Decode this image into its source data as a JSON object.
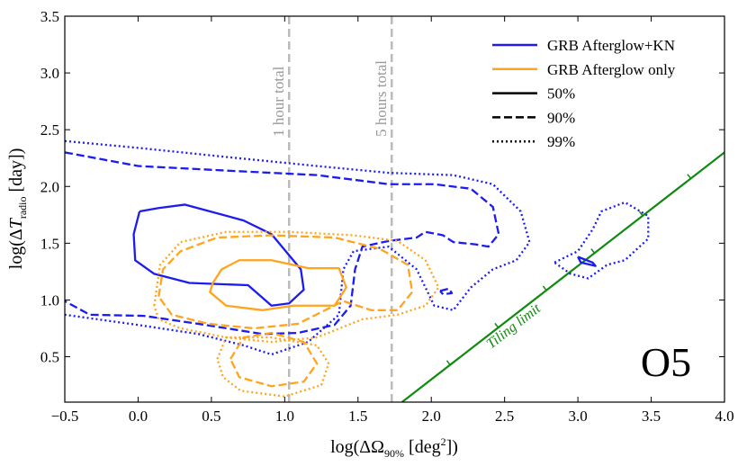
{
  "chart_data": {
    "type": "contour",
    "xlabel": [
      "log(ΔΩ",
      "90%",
      " [deg",
      "2",
      "])"
    ],
    "ylabel": [
      "log(Δ",
      "T",
      "radio",
      " [day])"
    ],
    "xlim": [
      -0.5,
      4.0
    ],
    "ylim": [
      0.1,
      3.5
    ],
    "xticks": [
      {
        "value": -0.5,
        "label": "−0.5"
      },
      {
        "value": 0,
        "label": "0.0"
      },
      0.5,
      {
        "value": 1,
        "label": "1.0"
      },
      1.5,
      {
        "value": 2,
        "label": "2.0"
      },
      2.5,
      {
        "value": 3,
        "label": "3.0"
      },
      3.5,
      {
        "value": 4,
        "label": "4.0"
      }
    ],
    "yticks": [
      0.5,
      {
        "value": 1,
        "label": "1.0"
      },
      1.5,
      {
        "value": 2,
        "label": "2.0"
      },
      2.5,
      {
        "value": 3,
        "label": "3.0"
      },
      3.5
    ],
    "legend": [
      {
        "label": "GRB Afterglow+KN",
        "color": "#1c1cf0"
      },
      {
        "label": "GRB Afterglow only",
        "color": "#ffa41c"
      },
      {
        "label": "50%",
        "linestyle": "solid"
      },
      {
        "label": "90%",
        "linestyle": "dashed"
      },
      {
        "label": "99%",
        "linestyle": "dotted"
      }
    ],
    "vlines": [
      {
        "x": 1.03,
        "label": "1 hour total",
        "color": "#bbbbbb"
      },
      {
        "x": 1.73,
        "label": "5 hours total",
        "color": "#bbbbbb"
      }
    ],
    "tiling": {
      "label": "Tiling limit",
      "color": "#108a10",
      "x": [
        1.8,
        4.0
      ],
      "y": [
        0.1,
        2.3
      ]
    },
    "annotation": "O5",
    "contours": [
      {
        "color": "#1c1cf0",
        "linestyle": "solid",
        "x": [
          0.01,
          -0.03,
          -0.02,
          0.11,
          0.35,
          0.75,
          0.91,
          1.03,
          1.13,
          1.11,
          0.91,
          0.72,
          0.32,
          0.14,
          0.01
        ],
        "y": [
          1.78,
          1.58,
          1.35,
          1.23,
          1.15,
          1.13,
          0.95,
          0.97,
          1.09,
          1.27,
          1.58,
          1.7,
          1.84,
          1.81,
          1.78
        ]
      },
      {
        "color": "#1c1cf0",
        "linestyle": "solid",
        "x": [
          3.0,
          3.1,
          3.12,
          3.02,
          3.0
        ],
        "y": [
          1.38,
          1.33,
          1.3,
          1.33,
          1.38
        ]
      },
      {
        "color": "#1c1cf0",
        "linestyle": "dashed",
        "x": [
          -0.5,
          0,
          0.6,
          1.22,
          1.71,
          2.02,
          2.27,
          2.42,
          2.46,
          2.39,
          2.3,
          2.15,
          2.08,
          1.96,
          1.9,
          1.71,
          1.53,
          1.48,
          1.45,
          1.34,
          1.09,
          0.85,
          0.41,
          0.04,
          -0.33,
          -0.5
        ],
        "y": [
          2.3,
          2.18,
          2.14,
          2.1,
          2.02,
          2.02,
          1.98,
          1.82,
          1.58,
          1.47,
          1.49,
          1.51,
          1.57,
          1.6,
          1.55,
          1.52,
          1.47,
          1.27,
          0.95,
          0.78,
          0.71,
          0.7,
          0.79,
          0.86,
          0.87,
          0.99
        ]
      },
      {
        "color": "#1c1cf0",
        "linestyle": "dashed",
        "x": [
          2.06,
          2.12,
          2.14,
          2.08,
          2.06
        ],
        "y": [
          1.08,
          1.1,
          1.06,
          1.05,
          1.08
        ]
      },
      {
        "color": "#1c1cf0",
        "linestyle": "dotted",
        "x": [
          -0.5,
          0,
          0.6,
          1.22,
          1.71,
          2.15,
          2.42,
          2.61,
          2.67,
          2.58,
          2.42,
          2.27,
          2.15,
          2.02,
          1.9,
          1.71,
          1.47,
          1.4,
          1.37,
          1.16,
          0.91,
          0.72,
          0.41,
          0,
          -0.5
        ],
        "y": [
          2.4,
          2.34,
          2.26,
          2.18,
          2.12,
          2.1,
          2.02,
          1.78,
          1.51,
          1.35,
          1.27,
          1.11,
          0.91,
          0.95,
          1.27,
          1.47,
          1.43,
          1.27,
          0.87,
          0.63,
          0.52,
          0.6,
          0.7,
          0.78,
          0.87
        ]
      },
      {
        "color": "#1c1cf0",
        "linestyle": "dotted",
        "x": [
          2.84,
          3.0,
          3.1,
          3.16,
          3.32,
          3.48,
          3.48,
          3.32,
          3.2,
          3.07,
          2.95,
          2.84
        ],
        "y": [
          1.33,
          1.43,
          1.62,
          1.78,
          1.86,
          1.74,
          1.54,
          1.35,
          1.31,
          1.19,
          1.23,
          1.33
        ]
      },
      {
        "color": "#ffa41c",
        "linestyle": "solid",
        "x": [
          0.51,
          0.57,
          0.69,
          0.91,
          1.16,
          1.37,
          1.42,
          1.34,
          1.06,
          0.85,
          0.6,
          0.49,
          0.51
        ],
        "y": [
          1.15,
          1.27,
          1.35,
          1.35,
          1.28,
          1.28,
          1.11,
          0.95,
          0.95,
          0.91,
          0.95,
          1.07,
          1.15
        ]
      },
      {
        "color": "#ffa41c",
        "linestyle": "dashed",
        "x": [
          0.14,
          0.17,
          0.29,
          0.54,
          0.91,
          1.34,
          1.65,
          1.84,
          1.87,
          1.77,
          1.59,
          1.4,
          1.09,
          0.79,
          0.48,
          0.23,
          0.14
        ],
        "y": [
          1.03,
          1.27,
          1.43,
          1.55,
          1.57,
          1.55,
          1.45,
          1.31,
          1.07,
          0.91,
          0.91,
          0.99,
          0.79,
          0.75,
          0.79,
          0.87,
          1.03
        ]
      },
      {
        "color": "#ffa41c",
        "linestyle": "dashed",
        "x": [
          0.63,
          0.72,
          0.91,
          1.13,
          1.22,
          1.13,
          0.91,
          0.69,
          0.63
        ],
        "y": [
          0.48,
          0.67,
          0.71,
          0.63,
          0.44,
          0.28,
          0.24,
          0.32,
          0.48
        ]
      },
      {
        "color": "#ffa41c",
        "linestyle": "dotted",
        "x": [
          0.11,
          0.15,
          0.29,
          0.6,
          1.03,
          1.47,
          1.77,
          1.96,
          2.05,
          1.96,
          1.77,
          1.53,
          1.22,
          0.91,
          0.6,
          0.29,
          0.14,
          0.11
        ],
        "y": [
          0.95,
          1.31,
          1.51,
          1.6,
          1.6,
          1.57,
          1.52,
          1.35,
          1.11,
          0.95,
          0.87,
          0.83,
          0.67,
          0.63,
          0.67,
          0.75,
          0.83,
          0.95
        ]
      },
      {
        "color": "#ffa41c",
        "linestyle": "dotted",
        "x": [
          0.54,
          0.6,
          0.91,
          1.22,
          1.3,
          1.25,
          1.0,
          0.7,
          0.58,
          0.54
        ],
        "y": [
          0.48,
          0.67,
          0.67,
          0.6,
          0.44,
          0.25,
          0.15,
          0.2,
          0.32,
          0.48
        ]
      }
    ]
  }
}
